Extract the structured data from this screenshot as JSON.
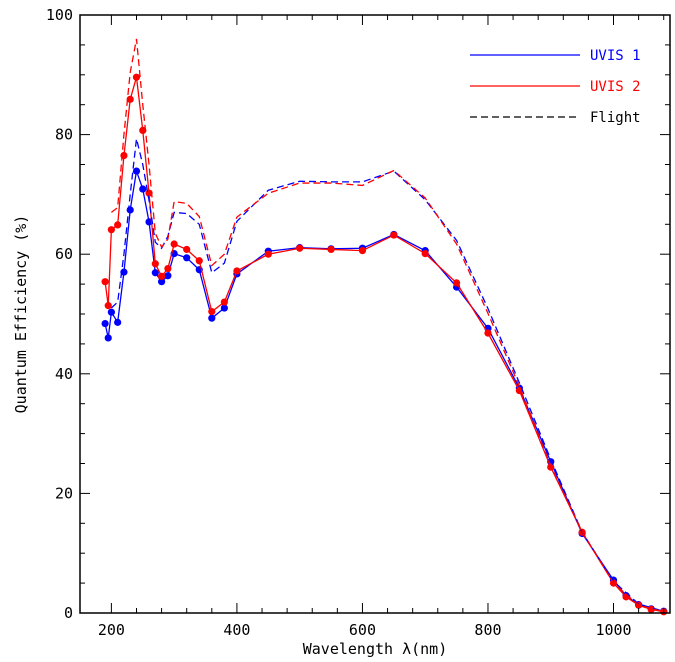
{
  "chart_data": {
    "type": "line",
    "xlabel": "Wavelength λ(nm)",
    "ylabel": "Quantum Efficiency (%)",
    "xlim": [
      150,
      1090
    ],
    "ylim": [
      0,
      100
    ],
    "x_ticks": [
      200,
      400,
      600,
      800,
      1000
    ],
    "y_ticks": [
      0,
      20,
      40,
      60,
      80,
      100
    ],
    "grid": false,
    "legend_position": "top-right",
    "colors": {
      "uvis1": "#0000ff",
      "uvis2": "#ff0000",
      "flight": "#000000"
    },
    "legend": [
      {
        "label": "UVIS 1",
        "color": "#0000ff",
        "style": "solid"
      },
      {
        "label": "UVIS 2",
        "color": "#ff0000",
        "style": "solid"
      },
      {
        "label": "Flight",
        "color": "#000000",
        "style": "dashed"
      }
    ],
    "series": [
      {
        "name": "UVIS 1",
        "color": "#0000ff",
        "style": "solid",
        "markers": true,
        "points": [
          [
            190,
            48.4
          ],
          [
            195,
            46.0
          ],
          [
            200,
            50.3
          ],
          [
            210,
            48.6
          ],
          [
            220,
            57.0
          ],
          [
            230,
            67.4
          ],
          [
            240,
            73.9
          ],
          [
            250,
            70.9
          ],
          [
            260,
            65.4
          ],
          [
            270,
            56.9
          ],
          [
            280,
            55.4
          ],
          [
            290,
            56.4
          ],
          [
            300,
            60.1
          ],
          [
            320,
            59.4
          ],
          [
            340,
            57.4
          ],
          [
            360,
            49.3
          ],
          [
            380,
            51.0
          ],
          [
            400,
            56.7
          ],
          [
            450,
            60.5
          ],
          [
            500,
            61.1
          ],
          [
            550,
            60.9
          ],
          [
            600,
            61.0
          ],
          [
            650,
            63.3
          ],
          [
            700,
            60.6
          ],
          [
            750,
            54.5
          ],
          [
            800,
            47.6
          ],
          [
            850,
            37.6
          ],
          [
            900,
            25.3
          ],
          [
            950,
            13.3
          ],
          [
            1000,
            5.5
          ],
          [
            1020,
            2.9
          ],
          [
            1040,
            1.4
          ],
          [
            1060,
            0.7
          ],
          [
            1080,
            0.3
          ]
        ]
      },
      {
        "name": "UVIS 2",
        "color": "#ff0000",
        "style": "solid",
        "markers": true,
        "points": [
          [
            190,
            55.4
          ],
          [
            195,
            51.4
          ],
          [
            200,
            64.1
          ],
          [
            210,
            64.9
          ],
          [
            220,
            76.5
          ],
          [
            230,
            85.9
          ],
          [
            240,
            89.6
          ],
          [
            250,
            80.7
          ],
          [
            260,
            70.2
          ],
          [
            270,
            58.4
          ],
          [
            280,
            56.3
          ],
          [
            290,
            57.6
          ],
          [
            300,
            61.7
          ],
          [
            320,
            60.8
          ],
          [
            340,
            58.9
          ],
          [
            360,
            50.4
          ],
          [
            380,
            52.0
          ],
          [
            400,
            57.2
          ],
          [
            450,
            60.0
          ],
          [
            500,
            61.0
          ],
          [
            550,
            60.8
          ],
          [
            600,
            60.6
          ],
          [
            650,
            63.2
          ],
          [
            700,
            60.1
          ],
          [
            750,
            55.2
          ],
          [
            800,
            46.8
          ],
          [
            850,
            37.2
          ],
          [
            900,
            24.4
          ],
          [
            950,
            13.5
          ],
          [
            1000,
            5.0
          ],
          [
            1020,
            2.7
          ],
          [
            1040,
            1.3
          ],
          [
            1060,
            0.6
          ],
          [
            1080,
            0.2
          ]
        ]
      },
      {
        "name": "UVIS 1 Flight",
        "color": "#0000ff",
        "style": "dashed",
        "markers": false,
        "points": [
          [
            200,
            51.0
          ],
          [
            210,
            52.0
          ],
          [
            220,
            60.0
          ],
          [
            230,
            70.0
          ],
          [
            240,
            79.3
          ],
          [
            250,
            75.0
          ],
          [
            260,
            69.0
          ],
          [
            270,
            62.0
          ],
          [
            280,
            61.0
          ],
          [
            290,
            63.0
          ],
          [
            300,
            67.0
          ],
          [
            320,
            66.8
          ],
          [
            340,
            65.0
          ],
          [
            360,
            56.9
          ],
          [
            380,
            58.5
          ],
          [
            400,
            65.5
          ],
          [
            450,
            70.7
          ],
          [
            500,
            72.2
          ],
          [
            550,
            72.1
          ],
          [
            600,
            72.1
          ],
          [
            650,
            73.9
          ],
          [
            700,
            69.1
          ],
          [
            750,
            62.3
          ],
          [
            800,
            50.9
          ],
          [
            850,
            38.5
          ],
          [
            900,
            25.7
          ],
          [
            950,
            13.5
          ],
          [
            1000,
            5.3
          ],
          [
            1040,
            1.5
          ],
          [
            1080,
            0.3
          ]
        ]
      },
      {
        "name": "UVIS 2 Flight",
        "color": "#ff0000",
        "style": "dashed",
        "markers": false,
        "points": [
          [
            200,
            67.0
          ],
          [
            210,
            67.8
          ],
          [
            220,
            80.0
          ],
          [
            230,
            90.4
          ],
          [
            240,
            96.0
          ],
          [
            250,
            85.0
          ],
          [
            260,
            75.0
          ],
          [
            270,
            63.5
          ],
          [
            280,
            61.2
          ],
          [
            290,
            62.5
          ],
          [
            300,
            68.8
          ],
          [
            320,
            68.5
          ],
          [
            340,
            66.3
          ],
          [
            360,
            58.1
          ],
          [
            380,
            60.0
          ],
          [
            400,
            66.2
          ],
          [
            450,
            70.2
          ],
          [
            500,
            71.9
          ],
          [
            550,
            71.9
          ],
          [
            600,
            71.5
          ],
          [
            650,
            74.0
          ],
          [
            700,
            69.4
          ],
          [
            750,
            61.7
          ],
          [
            800,
            50.1
          ],
          [
            850,
            37.9
          ],
          [
            900,
            24.6
          ],
          [
            950,
            13.6
          ],
          [
            1000,
            5.0
          ],
          [
            1040,
            1.3
          ],
          [
            1080,
            0.2
          ]
        ]
      }
    ]
  }
}
